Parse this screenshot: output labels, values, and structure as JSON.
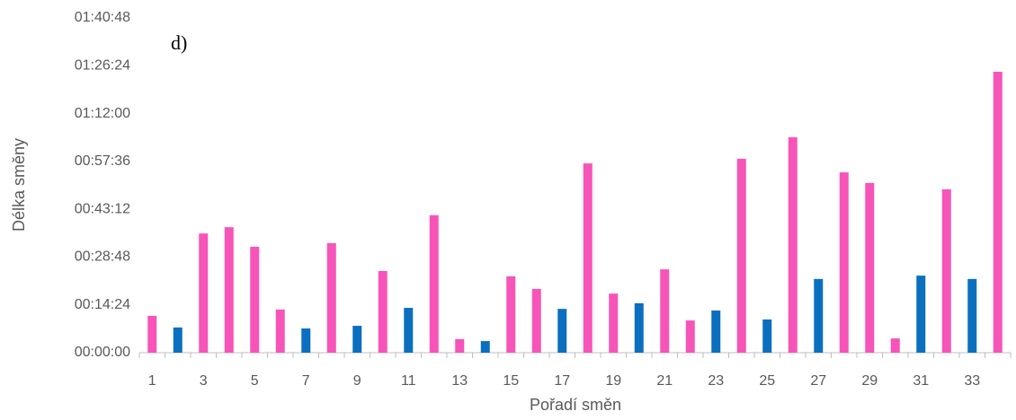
{
  "chart_data": {
    "type": "bar",
    "annotation": "d)",
    "x_label": "Pořadí směn",
    "y_label": "Délka směny",
    "categories": [
      "1",
      null,
      "3",
      null,
      "5",
      null,
      "7",
      null,
      "9",
      null,
      "11",
      null,
      "13",
      null,
      "15",
      null,
      "17",
      null,
      "19",
      null,
      "21",
      null,
      "23",
      null,
      "25",
      null,
      "27",
      null,
      "29",
      null,
      "31",
      null,
      "33",
      null
    ],
    "values": [
      11.1,
      7.6,
      35.9,
      37.8,
      31.9,
      13.0,
      7.3,
      33.0,
      8.1,
      24.6,
      13.5,
      41.4,
      4.1,
      3.5,
      23.0,
      19.2,
      13.2,
      57.0,
      17.8,
      14.9,
      25.1,
      9.7,
      12.7,
      58.4,
      10.0,
      64.9,
      22.2,
      54.3,
      51.1,
      4.3,
      23.2,
      49.2,
      22.2,
      84.6
    ],
    "colors": [
      "#f754b9",
      "#0b6fc0",
      "#f754b9",
      "#f754b9",
      "#f754b9",
      "#f754b9",
      "#0b6fc0",
      "#f754b9",
      "#0b6fc0",
      "#f754b9",
      "#0b6fc0",
      "#f754b9",
      "#f754b9",
      "#0b6fc0",
      "#f754b9",
      "#f754b9",
      "#0b6fc0",
      "#f754b9",
      "#f754b9",
      "#0b6fc0",
      "#f754b9",
      "#f754b9",
      "#0b6fc0",
      "#f754b9",
      "#0b6fc0",
      "#f754b9",
      "#0b6fc0",
      "#f754b9",
      "#f754b9",
      "#f754b9",
      "#0b6fc0",
      "#f754b9",
      "#0b6fc0",
      "#f754b9"
    ],
    "ylim": [
      0,
      100.8
    ],
    "yticks": [
      {
        "value": 0,
        "label": "00:00:00"
      },
      {
        "value": 14.4,
        "label": "00:14:24"
      },
      {
        "value": 28.8,
        "label": "00:28:48"
      },
      {
        "value": 43.2,
        "label": "00:43:12"
      },
      {
        "value": 57.6,
        "label": "00:57:36"
      },
      {
        "value": 72,
        "label": "01:12:00"
      },
      {
        "value": 86.4,
        "label": "01:26:24"
      },
      {
        "value": 100.8,
        "label": "01:40:48"
      }
    ],
    "grid": false
  }
}
